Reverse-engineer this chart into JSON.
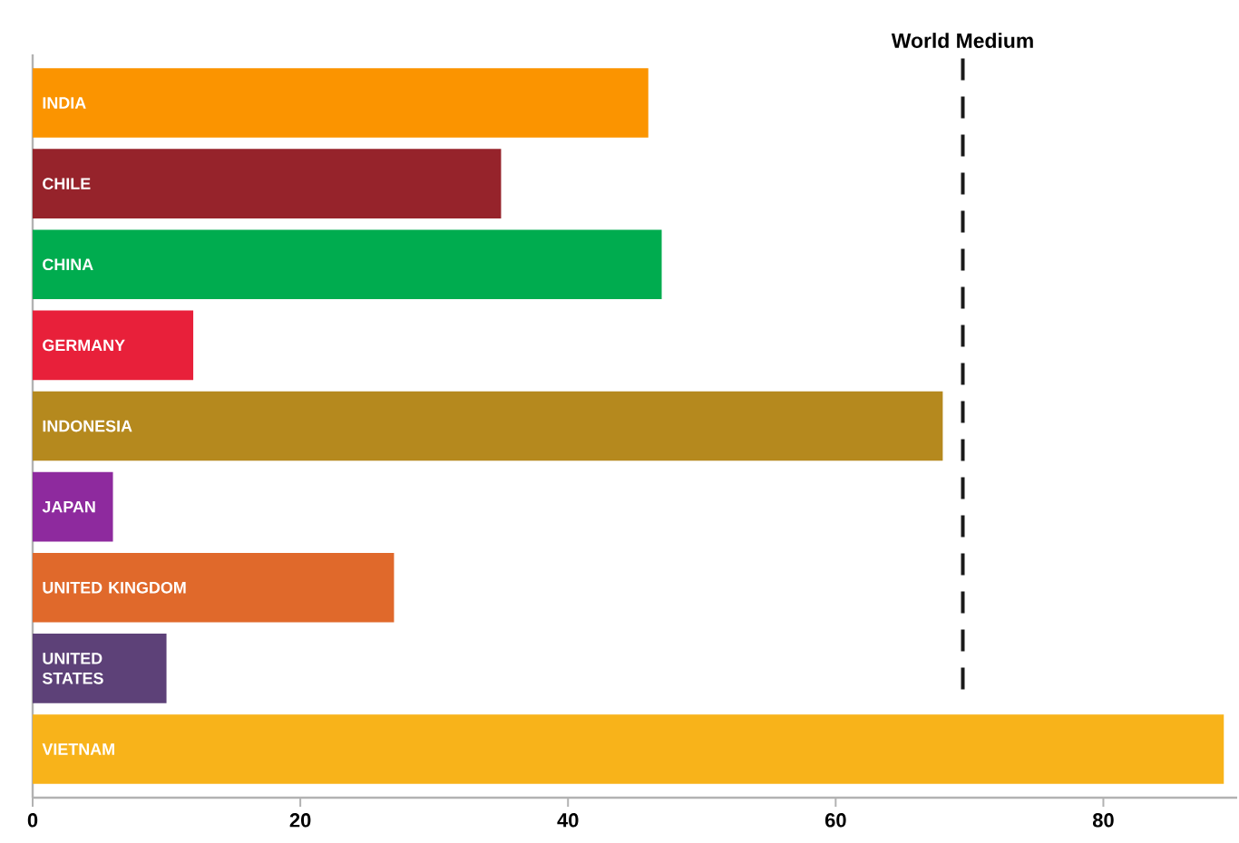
{
  "chart_data": {
    "type": "bar",
    "orientation": "horizontal",
    "categories": [
      "INDIA",
      "CHILE",
      "CHINA",
      "GERMANY",
      "INDONESIA",
      "JAPAN",
      "UNITED KINGDOM",
      "UNITED STATES",
      "VIETNAM"
    ],
    "values": [
      46,
      35,
      47,
      12,
      68,
      6,
      27,
      10,
      89
    ],
    "colors": [
      "#fb9400",
      "#96232b",
      "#00ac4f",
      "#e8203a",
      "#b5891e",
      "#8e2a9e",
      "#e0692b",
      "#5d4178",
      "#f8b31a"
    ],
    "xlim": [
      0,
      90
    ],
    "xticks": [
      0,
      20,
      40,
      60,
      80
    ],
    "ref_lines": [
      {
        "axis": "x",
        "value": 69.5,
        "label": "World Medium",
        "line_style": "dashed",
        "color": "#1a1a1a"
      }
    ],
    "tick_labels": "x",
    "grid": false
  }
}
